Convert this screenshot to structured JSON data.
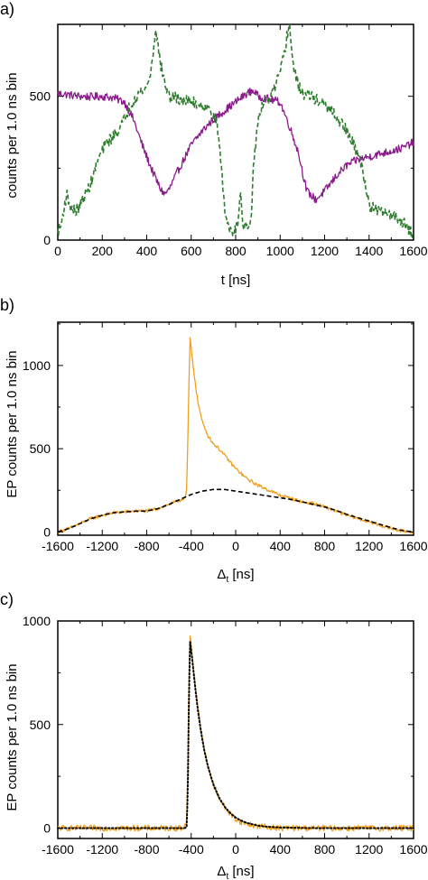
{
  "panels": [
    {
      "panel_label": "a)",
      "xlabel": "t [ns]",
      "xlabel_sub": "",
      "xlabel_tail": "",
      "ylabel": "counts per 1.0 ns bin"
    },
    {
      "panel_label": "b)",
      "xlabel": "Δ",
      "xlabel_sub": "t",
      "xlabel_tail": " [ns]",
      "ylabel": "EP counts per 1.0 ns bin"
    },
    {
      "panel_label": "c)",
      "xlabel": "Δ",
      "xlabel_sub": "t",
      "xlabel_tail": " [ns]",
      "ylabel": "EP counts per 1.0 ns bin"
    }
  ],
  "chart_data": [
    {
      "type": "line",
      "xlim": [
        0,
        1600
      ],
      "ylim": [
        0,
        750
      ],
      "xticks": [
        0,
        200,
        400,
        600,
        800,
        1000,
        1200,
        1400,
        1600
      ],
      "xtick_labels": [
        "0",
        "200",
        "400",
        "600",
        "800",
        "1000",
        "1200",
        "1400",
        "1600"
      ],
      "yticks": [
        0,
        500
      ],
      "ytick_labels": [
        "0",
        "500"
      ],
      "grid": false,
      "series": [
        {
          "color": "#8b1a8b",
          "style": "solid",
          "noise": 14,
          "x": [
            0,
            50,
            100,
            150,
            200,
            250,
            300,
            340,
            380,
            420,
            460,
            480,
            500,
            540,
            600,
            650,
            700,
            750,
            800,
            850,
            880,
            900,
            950,
            1000,
            1040,
            1080,
            1100,
            1120,
            1160,
            1200,
            1260,
            1300,
            1350,
            1400,
            1450,
            1500,
            1550,
            1600
          ],
          "y": [
            510,
            505,
            500,
            498,
            500,
            495,
            480,
            420,
            330,
            250,
            180,
            160,
            175,
            240,
            330,
            380,
            420,
            450,
            480,
            510,
            520,
            500,
            490,
            480,
            400,
            310,
            240,
            170,
            140,
            170,
            230,
            260,
            280,
            290,
            300,
            310,
            320,
            340
          ]
        },
        {
          "color": "#2e7d2e",
          "style": "dashed",
          "noise": 20,
          "x": [
            0,
            15,
            25,
            40,
            60,
            80,
            100,
            150,
            180,
            200,
            220,
            250,
            280,
            300,
            320,
            350,
            380,
            400,
            420,
            430,
            440,
            460,
            480,
            500,
            550,
            600,
            650,
            700,
            720,
            740,
            750,
            770,
            790,
            810,
            820,
            830,
            850,
            870,
            880,
            900,
            920,
            940,
            950,
            970,
            1000,
            1020,
            1040,
            1060,
            1080,
            1100,
            1150,
            1200,
            1250,
            1300,
            1330,
            1360,
            1380,
            1400,
            1440,
            1500,
            1560,
            1580,
            1600
          ],
          "y": [
            30,
            50,
            100,
            160,
            110,
            100,
            120,
            200,
            280,
            310,
            340,
            360,
            390,
            420,
            460,
            500,
            520,
            530,
            590,
            660,
            740,
            620,
            550,
            500,
            490,
            480,
            470,
            440,
            380,
            220,
            100,
            40,
            30,
            60,
            180,
            60,
            40,
            60,
            250,
            420,
            470,
            480,
            490,
            520,
            580,
            650,
            760,
            600,
            540,
            510,
            495,
            470,
            430,
            380,
            330,
            280,
            210,
            120,
            100,
            90,
            60,
            30,
            20
          ]
        }
      ]
    },
    {
      "type": "line",
      "xlim": [
        -1600,
        1600
      ],
      "ylim": [
        -20,
        1260
      ],
      "xticks": [
        -1600,
        -1200,
        -800,
        -400,
        0,
        400,
        800,
        1200,
        1600
      ],
      "xtick_labels": [
        "-1600",
        "-1200",
        "-800",
        "-400",
        "0",
        "400",
        "800",
        "1200",
        "1600"
      ],
      "yticks": [
        0,
        500,
        1000
      ],
      "ytick_labels": [
        "0",
        "500",
        "1000"
      ],
      "grid": false,
      "series": [
        {
          "color": "#f0a020",
          "style": "solid",
          "noise": 10,
          "x": [
            -1600,
            -1500,
            -1400,
            -1300,
            -1200,
            -1100,
            -1000,
            -900,
            -800,
            -700,
            -600,
            -500,
            -450,
            -440,
            -430,
            -420,
            -410,
            -400,
            -380,
            -360,
            -340,
            -320,
            -300,
            -250,
            -200,
            -150,
            -100,
            -50,
            0,
            50,
            100,
            200,
            300,
            400,
            500,
            600,
            700,
            800,
            900,
            1000,
            1100,
            1200,
            1300,
            1400,
            1500,
            1600
          ],
          "y": [
            0,
            20,
            50,
            80,
            100,
            115,
            120,
            125,
            125,
            140,
            165,
            190,
            210,
            260,
            560,
            900,
            1170,
            1100,
            980,
            880,
            780,
            720,
            660,
            580,
            530,
            500,
            460,
            420,
            380,
            350,
            320,
            280,
            250,
            220,
            200,
            180,
            170,
            150,
            125,
            100,
            80,
            60,
            40,
            20,
            5,
            0
          ]
        },
        {
          "color": "#000000",
          "style": "dashed",
          "noise": 0,
          "x": [
            -1600,
            -1500,
            -1400,
            -1300,
            -1200,
            -1100,
            -1000,
            -900,
            -800,
            -700,
            -600,
            -500,
            -400,
            -300,
            -200,
            -100,
            0,
            100,
            200,
            300,
            400,
            500,
            600,
            700,
            800,
            900,
            1000,
            1100,
            1200,
            1300,
            1400,
            1500,
            1600
          ],
          "y": [
            0,
            20,
            50,
            80,
            100,
            115,
            120,
            125,
            125,
            140,
            165,
            195,
            225,
            245,
            255,
            255,
            245,
            235,
            225,
            215,
            205,
            195,
            180,
            165,
            150,
            130,
            105,
            85,
            65,
            45,
            25,
            8,
            0
          ]
        }
      ]
    },
    {
      "type": "line",
      "xlim": [
        -1600,
        1600
      ],
      "ylim": [
        -50,
        1000
      ],
      "xticks": [
        -1600,
        -1200,
        -800,
        -400,
        0,
        400,
        800,
        1200,
        1600
      ],
      "xtick_labels": [
        "-1600",
        "-1200",
        "-800",
        "-400",
        "0",
        "400",
        "800",
        "1200",
        "1600"
      ],
      "yticks": [
        0,
        500,
        1000
      ],
      "ytick_labels": [
        "0",
        "500",
        "1000"
      ],
      "grid": false,
      "series": [
        {
          "color": "#f0a020",
          "style": "solid",
          "noise": 14,
          "x": [
            -1600,
            -1200,
            -800,
            -500,
            -460,
            -440,
            -430,
            -420,
            -410,
            -400,
            -380,
            -360,
            -340,
            -320,
            -300,
            -280,
            -250,
            -200,
            -150,
            -100,
            -50,
            0,
            50,
            100,
            200,
            300,
            400,
            600,
            800,
            1200,
            1600
          ],
          "y": [
            0,
            0,
            0,
            0,
            5,
            30,
            300,
            700,
            940,
            880,
            780,
            670,
            580,
            500,
            430,
            370,
            300,
            210,
            150,
            100,
            70,
            45,
            30,
            20,
            10,
            5,
            0,
            0,
            0,
            0,
            0
          ]
        },
        {
          "color": "#000000",
          "style": "dotted",
          "noise": 0,
          "x": [
            -1600,
            -1200,
            -800,
            -500,
            -460,
            -440,
            -430,
            -420,
            -410,
            -400,
            -380,
            -360,
            -340,
            -320,
            -300,
            -280,
            -250,
            -200,
            -150,
            -100,
            -50,
            0,
            50,
            100,
            200,
            300,
            400,
            600,
            800,
            1200,
            1600
          ],
          "y": [
            0,
            0,
            0,
            0,
            0,
            5,
            200,
            650,
            900,
            860,
            760,
            660,
            570,
            495,
            428,
            370,
            298,
            210,
            148,
            104,
            73,
            51,
            36,
            25,
            12,
            6,
            3,
            1,
            0,
            0,
            0
          ]
        }
      ]
    }
  ]
}
